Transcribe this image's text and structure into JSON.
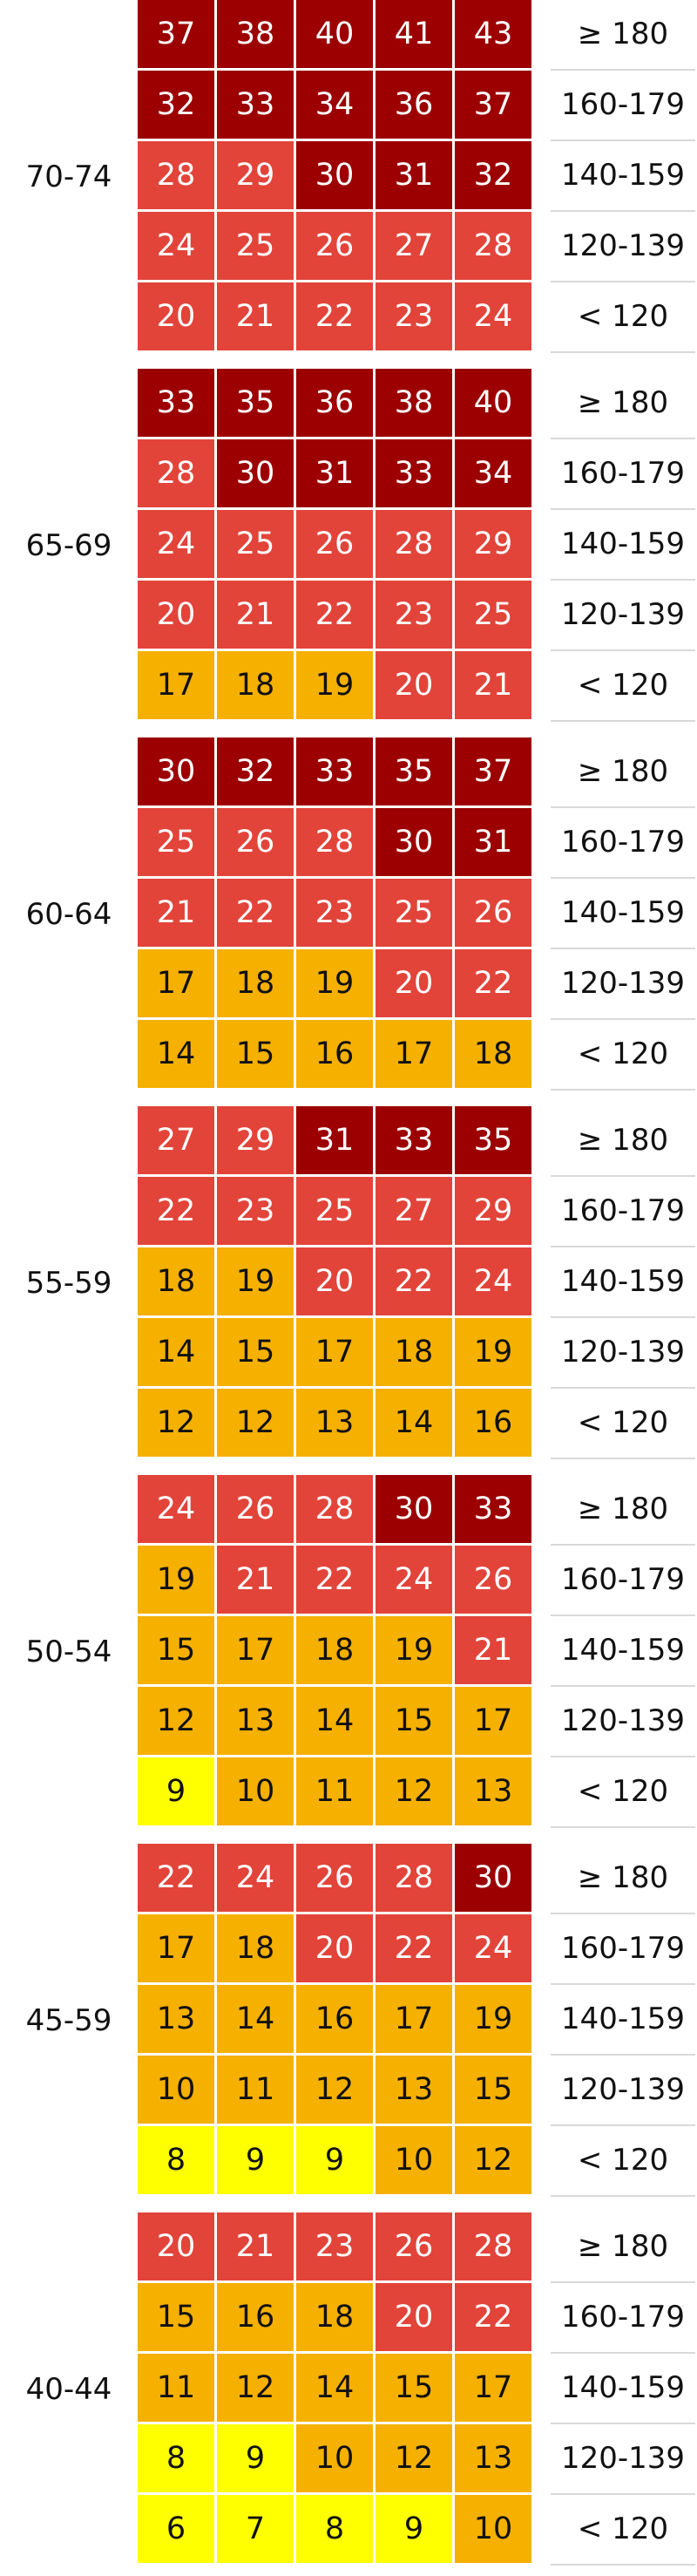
{
  "chart_data": {
    "type": "heatmap",
    "title": "",
    "xlabel": "",
    "ylabel": "",
    "row_labels": [
      "≥ 180",
      "160-179",
      "140-159",
      "120-139",
      "< 120"
    ],
    "colors": {
      "low": "#ffff00",
      "moderate": "#f5b000",
      "high": "#e2443a",
      "very_high": "#9c0000",
      "text_dark": "#111111",
      "text_light": "#ffffff"
    },
    "groups": [
      {
        "age": "70-74",
        "values": [
          [
            37,
            38,
            40,
            41,
            43
          ],
          [
            32,
            33,
            34,
            36,
            37
          ],
          [
            28,
            29,
            30,
            31,
            32
          ],
          [
            24,
            25,
            26,
            27,
            28
          ],
          [
            20,
            21,
            22,
            23,
            24
          ]
        ],
        "levels": [
          [
            "very_high",
            "very_high",
            "very_high",
            "very_high",
            "very_high"
          ],
          [
            "very_high",
            "very_high",
            "very_high",
            "very_high",
            "very_high"
          ],
          [
            "high",
            "high",
            "very_high",
            "very_high",
            "very_high"
          ],
          [
            "high",
            "high",
            "high",
            "high",
            "high"
          ],
          [
            "high",
            "high",
            "high",
            "high",
            "high"
          ]
        ]
      },
      {
        "age": "65-69",
        "values": [
          [
            33,
            35,
            36,
            38,
            40
          ],
          [
            28,
            30,
            31,
            33,
            34
          ],
          [
            24,
            25,
            26,
            28,
            29
          ],
          [
            20,
            21,
            22,
            23,
            25
          ],
          [
            17,
            18,
            19,
            20,
            21
          ]
        ],
        "levels": [
          [
            "very_high",
            "very_high",
            "very_high",
            "very_high",
            "very_high"
          ],
          [
            "high",
            "very_high",
            "very_high",
            "very_high",
            "very_high"
          ],
          [
            "high",
            "high",
            "high",
            "high",
            "high"
          ],
          [
            "high",
            "high",
            "high",
            "high",
            "high"
          ],
          [
            "moderate",
            "moderate",
            "moderate",
            "high",
            "high"
          ]
        ]
      },
      {
        "age": "60-64",
        "values": [
          [
            30,
            32,
            33,
            35,
            37
          ],
          [
            25,
            26,
            28,
            30,
            31
          ],
          [
            21,
            22,
            23,
            25,
            26
          ],
          [
            17,
            18,
            19,
            20,
            22
          ],
          [
            14,
            15,
            16,
            17,
            18
          ]
        ],
        "levels": [
          [
            "very_high",
            "very_high",
            "very_high",
            "very_high",
            "very_high"
          ],
          [
            "high",
            "high",
            "high",
            "very_high",
            "very_high"
          ],
          [
            "high",
            "high",
            "high",
            "high",
            "high"
          ],
          [
            "moderate",
            "moderate",
            "moderate",
            "high",
            "high"
          ],
          [
            "moderate",
            "moderate",
            "moderate",
            "moderate",
            "moderate"
          ]
        ]
      },
      {
        "age": "55-59",
        "values": [
          [
            27,
            29,
            31,
            33,
            35
          ],
          [
            22,
            23,
            25,
            27,
            29
          ],
          [
            18,
            19,
            20,
            22,
            24
          ],
          [
            14,
            15,
            17,
            18,
            19
          ],
          [
            12,
            12,
            13,
            14,
            16
          ]
        ],
        "levels": [
          [
            "high",
            "high",
            "very_high",
            "very_high",
            "very_high"
          ],
          [
            "high",
            "high",
            "high",
            "high",
            "high"
          ],
          [
            "moderate",
            "moderate",
            "high",
            "high",
            "high"
          ],
          [
            "moderate",
            "moderate",
            "moderate",
            "moderate",
            "moderate"
          ],
          [
            "moderate",
            "moderate",
            "moderate",
            "moderate",
            "moderate"
          ]
        ]
      },
      {
        "age": "50-54",
        "values": [
          [
            24,
            26,
            28,
            30,
            33
          ],
          [
            19,
            21,
            22,
            24,
            26
          ],
          [
            15,
            17,
            18,
            19,
            21
          ],
          [
            12,
            13,
            14,
            15,
            17
          ],
          [
            9,
            10,
            11,
            12,
            13
          ]
        ],
        "levels": [
          [
            "high",
            "high",
            "high",
            "very_high",
            "very_high"
          ],
          [
            "moderate",
            "high",
            "high",
            "high",
            "high"
          ],
          [
            "moderate",
            "moderate",
            "moderate",
            "moderate",
            "high"
          ],
          [
            "moderate",
            "moderate",
            "moderate",
            "moderate",
            "moderate"
          ],
          [
            "low",
            "moderate",
            "moderate",
            "moderate",
            "moderate"
          ]
        ]
      },
      {
        "age": "45-59",
        "values": [
          [
            22,
            24,
            26,
            28,
            30
          ],
          [
            17,
            18,
            20,
            22,
            24
          ],
          [
            13,
            14,
            16,
            17,
            19
          ],
          [
            10,
            11,
            12,
            13,
            15
          ],
          [
            8,
            9,
            9,
            10,
            12
          ]
        ],
        "levels": [
          [
            "high",
            "high",
            "high",
            "high",
            "very_high"
          ],
          [
            "moderate",
            "moderate",
            "high",
            "high",
            "high"
          ],
          [
            "moderate",
            "moderate",
            "moderate",
            "moderate",
            "moderate"
          ],
          [
            "moderate",
            "moderate",
            "moderate",
            "moderate",
            "moderate"
          ],
          [
            "low",
            "low",
            "low",
            "moderate",
            "moderate"
          ]
        ]
      },
      {
        "age": "40-44",
        "values": [
          [
            20,
            21,
            23,
            26,
            28
          ],
          [
            15,
            16,
            18,
            20,
            22
          ],
          [
            11,
            12,
            14,
            15,
            17
          ],
          [
            8,
            9,
            10,
            12,
            13
          ],
          [
            6,
            7,
            8,
            9,
            10
          ]
        ],
        "levels": [
          [
            "high",
            "high",
            "high",
            "high",
            "high"
          ],
          [
            "moderate",
            "moderate",
            "moderate",
            "high",
            "high"
          ],
          [
            "moderate",
            "moderate",
            "moderate",
            "moderate",
            "moderate"
          ],
          [
            "low",
            "low",
            "moderate",
            "moderate",
            "moderate"
          ],
          [
            "low",
            "low",
            "low",
            "low",
            "moderate"
          ]
        ]
      }
    ]
  }
}
